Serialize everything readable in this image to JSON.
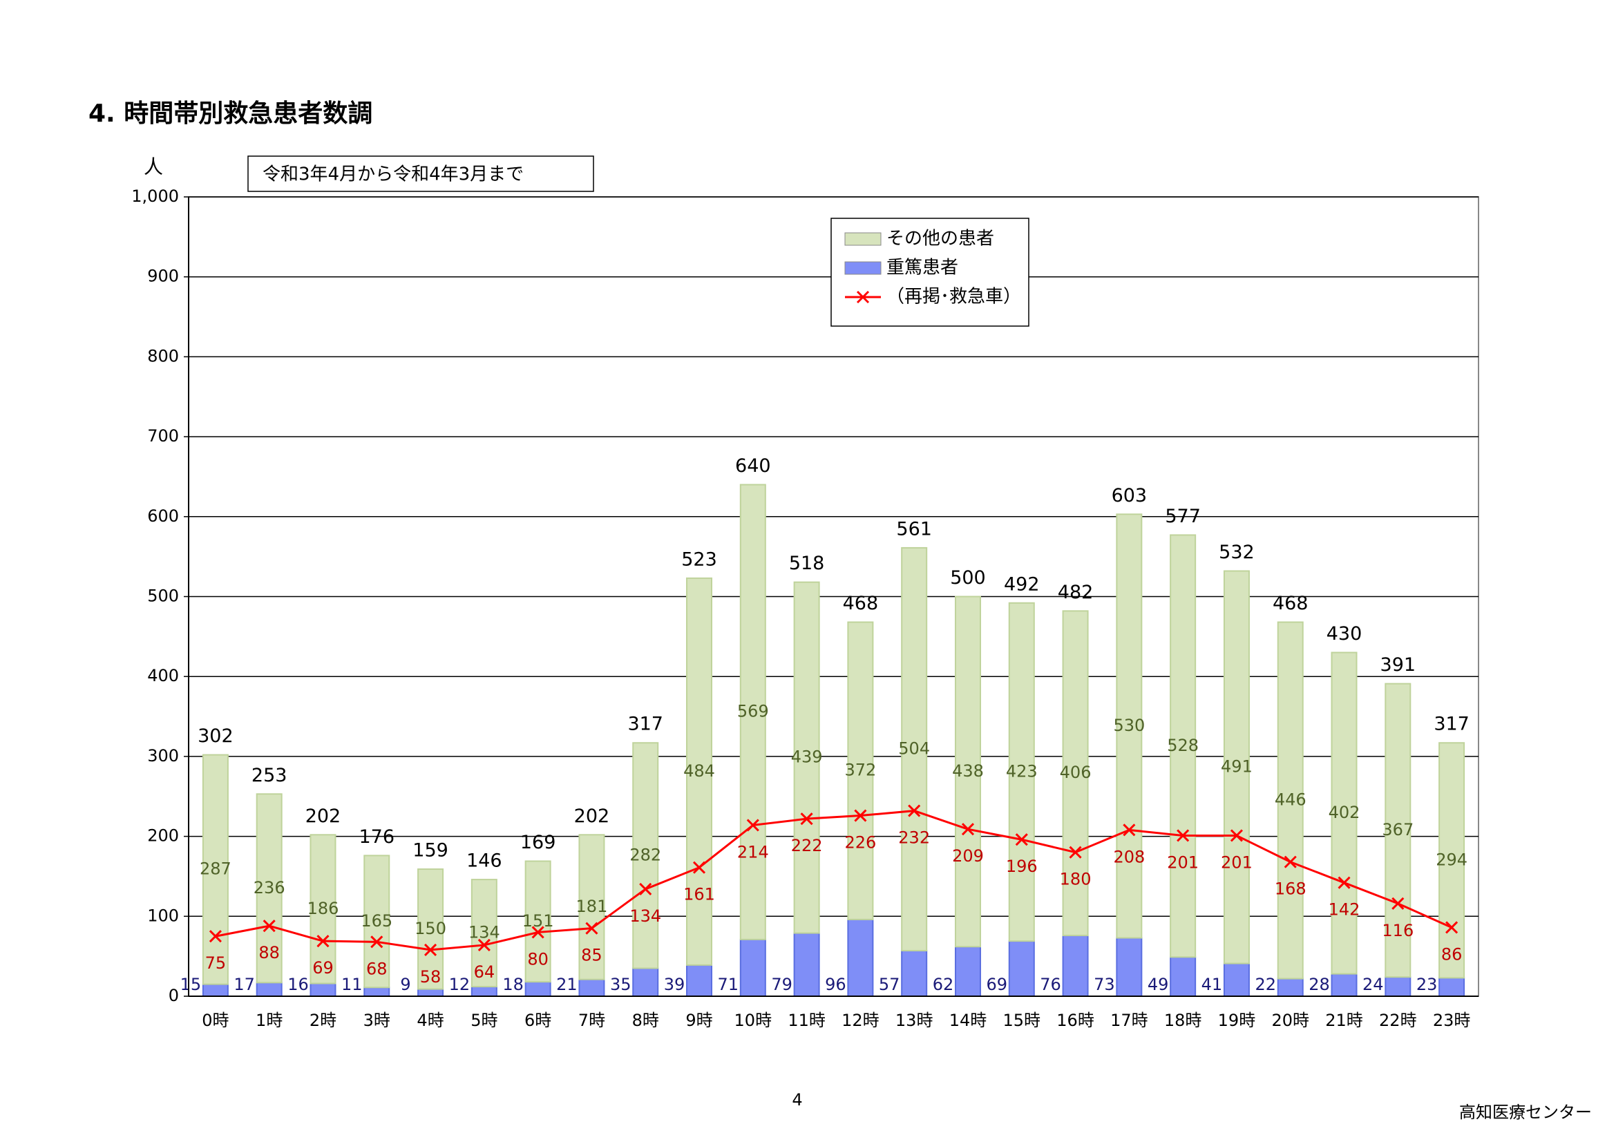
{
  "title": "4. 時間帯別救急患者数調",
  "footer": "高知医療センター",
  "page_number": "4",
  "chart_data": {
    "type": "bar",
    "stacked": true,
    "subtitle": "令和3年4月から令和4年3月まで",
    "y_unit": "人",
    "categories": [
      "0時",
      "1時",
      "2時",
      "3時",
      "4時",
      "5時",
      "6時",
      "7時",
      "8時",
      "9時",
      "10時",
      "11時",
      "12時",
      "13時",
      "14時",
      "15時",
      "16時",
      "17時",
      "18時",
      "19時",
      "20時",
      "21時",
      "22時",
      "23時"
    ],
    "series": [
      {
        "name": "重篤患者",
        "color": "#7f8ef7",
        "label_color": "#1a1a78",
        "values": [
          15,
          17,
          16,
          11,
          9,
          12,
          18,
          21,
          35,
          39,
          71,
          79,
          96,
          57,
          62,
          69,
          76,
          73,
          49,
          41,
          22,
          28,
          24,
          23
        ]
      },
      {
        "name": "その他の患者",
        "color": "#d7e4bd",
        "label_color": "#4f6228",
        "values": [
          287,
          236,
          186,
          165,
          150,
          134,
          151,
          181,
          282,
          484,
          569,
          439,
          372,
          504,
          438,
          423,
          406,
          530,
          528,
          491,
          446,
          402,
          367,
          294
        ]
      },
      {
        "name": "（再掲･救急車）",
        "type": "line",
        "color": "#ff0000",
        "label_color": "#c00000",
        "values": [
          75,
          88,
          69,
          68,
          58,
          64,
          80,
          85,
          134,
          161,
          214,
          222,
          226,
          232,
          209,
          196,
          180,
          208,
          201,
          201,
          168,
          142,
          116,
          86
        ]
      }
    ],
    "totals": [
      302,
      253,
      202,
      176,
      159,
      146,
      169,
      202,
      317,
      523,
      640,
      518,
      468,
      561,
      500,
      492,
      482,
      603,
      577,
      532,
      468,
      430,
      391,
      317
    ],
    "ylim": [
      0,
      1000
    ],
    "yticks": [
      0,
      100,
      200,
      300,
      400,
      500,
      600,
      700,
      800,
      900,
      {
        "value": 1000,
        "label": "1,000"
      }
    ],
    "grid": true,
    "legend": "top-center"
  }
}
